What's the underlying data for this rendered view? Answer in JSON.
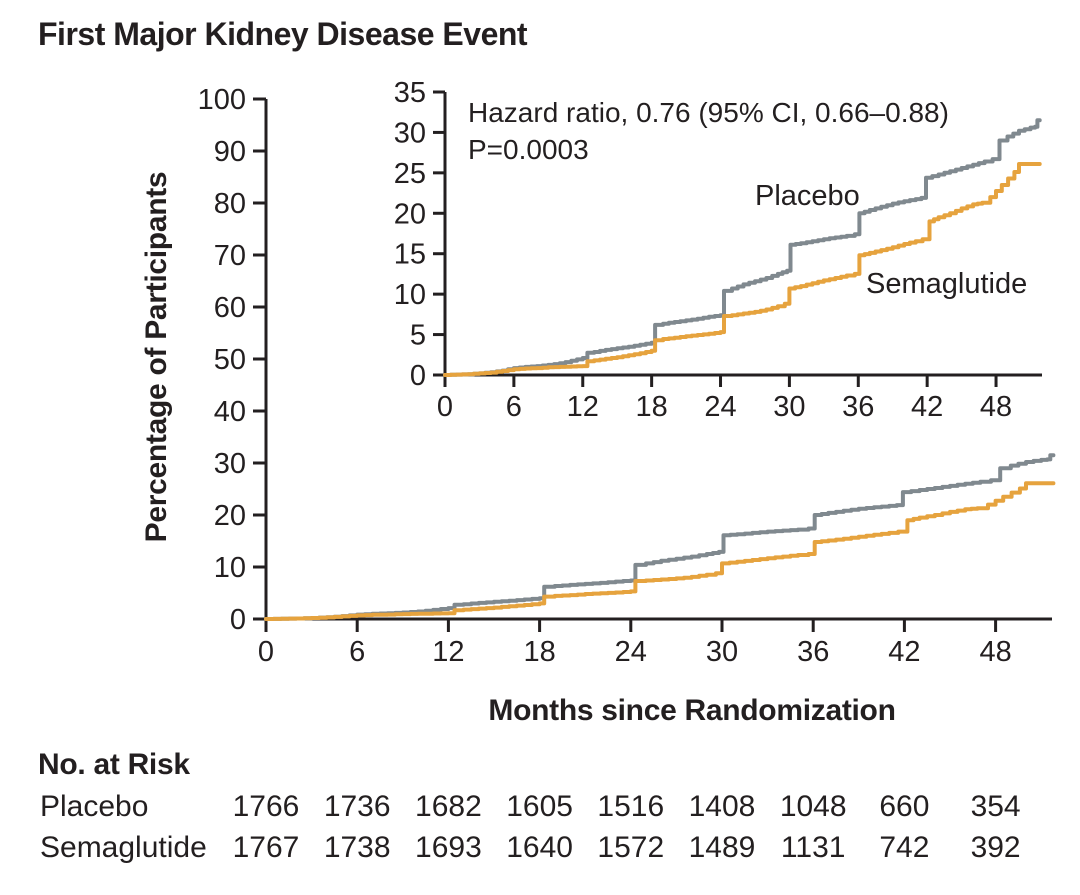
{
  "title": "First Major Kidney Disease Event",
  "colors": {
    "placebo": "#80898F",
    "semaglutide": "#E6A33E",
    "axis": "#231F20",
    "text": "#231F20"
  },
  "annotation": {
    "line1": "Hazard ratio, 0.76 (95% CI, 0.66–0.88)",
    "line2": "P=0.0003"
  },
  "chart_data": {
    "type": "line",
    "title": "First Major Kidney Disease Event",
    "xlabel": "Months since Randomization",
    "ylabel": "Percentage of Participants",
    "main_axis": {
      "xticks": [
        0,
        6,
        12,
        18,
        24,
        30,
        36,
        42,
        48
      ],
      "yticks": [
        0,
        10,
        20,
        30,
        40,
        50,
        60,
        70,
        80,
        90,
        100
      ],
      "xlim": [
        0,
        51.8
      ],
      "ylim": [
        0,
        100
      ],
      "grid": false
    },
    "inset_axis": {
      "xticks": [
        0,
        6,
        12,
        18,
        24,
        30,
        36,
        42,
        48
      ],
      "yticks": [
        0,
        5,
        10,
        15,
        20,
        25,
        30,
        35
      ],
      "xlim": [
        0,
        51.8
      ],
      "ylim": [
        0,
        35
      ],
      "grid": false
    },
    "legend_position": "labels-inside-inset",
    "series": [
      {
        "name": "Placebo",
        "color": "#80898F",
        "points": [
          [
            0,
            0
          ],
          [
            1,
            0.05
          ],
          [
            2,
            0.1
          ],
          [
            3,
            0.2
          ],
          [
            4,
            0.35
          ],
          [
            5,
            0.55
          ],
          [
            6,
            0.85
          ],
          [
            7,
            1.0
          ],
          [
            8,
            1.1
          ],
          [
            9,
            1.25
          ],
          [
            10,
            1.45
          ],
          [
            11,
            1.75
          ],
          [
            12,
            2.1
          ],
          [
            12.4,
            2.75
          ],
          [
            13,
            2.85
          ],
          [
            14,
            3.1
          ],
          [
            15,
            3.3
          ],
          [
            16,
            3.5
          ],
          [
            17,
            3.75
          ],
          [
            18,
            4.0
          ],
          [
            18.3,
            6.2
          ],
          [
            19,
            6.35
          ],
          [
            20,
            6.55
          ],
          [
            21,
            6.75
          ],
          [
            22,
            6.95
          ],
          [
            23,
            7.2
          ],
          [
            24,
            7.4
          ],
          [
            24.3,
            10.4
          ],
          [
            25,
            10.7
          ],
          [
            26,
            11.2
          ],
          [
            27,
            11.6
          ],
          [
            28,
            12.0
          ],
          [
            29,
            12.5
          ],
          [
            29.8,
            12.9
          ],
          [
            30.1,
            16.1
          ],
          [
            31,
            16.3
          ],
          [
            32,
            16.55
          ],
          [
            33,
            16.8
          ],
          [
            34,
            17.0
          ],
          [
            35,
            17.2
          ],
          [
            35.7,
            17.4
          ],
          [
            36.1,
            20.0
          ],
          [
            37,
            20.4
          ],
          [
            38,
            20.8
          ],
          [
            39,
            21.2
          ],
          [
            40,
            21.5
          ],
          [
            41,
            21.75
          ],
          [
            41.5,
            21.9
          ],
          [
            41.9,
            24.4
          ],
          [
            43,
            24.8
          ],
          [
            44,
            25.2
          ],
          [
            45,
            25.6
          ],
          [
            46,
            26.0
          ],
          [
            47,
            26.4
          ],
          [
            47.7,
            26.7
          ],
          [
            48.3,
            29.0
          ],
          [
            49,
            29.5
          ],
          [
            50,
            30.2
          ],
          [
            51,
            30.6
          ],
          [
            51.4,
            30.7
          ],
          [
            51.6,
            31.5
          ],
          [
            51.8,
            31.5
          ]
        ]
      },
      {
        "name": "Semaglutide",
        "color": "#E6A33E",
        "points": [
          [
            0,
            0
          ],
          [
            1,
            0.05
          ],
          [
            2,
            0.1
          ],
          [
            3,
            0.2
          ],
          [
            4,
            0.3
          ],
          [
            5,
            0.5
          ],
          [
            6,
            0.7
          ],
          [
            7,
            0.8
          ],
          [
            8,
            0.85
          ],
          [
            9,
            0.95
          ],
          [
            10,
            1.0
          ],
          [
            11,
            1.05
          ],
          [
            12,
            1.1
          ],
          [
            12.4,
            1.7
          ],
          [
            13,
            1.8
          ],
          [
            14,
            2.0
          ],
          [
            15,
            2.2
          ],
          [
            16,
            2.45
          ],
          [
            17,
            2.7
          ],
          [
            18,
            3.0
          ],
          [
            18.3,
            4.3
          ],
          [
            19,
            4.45
          ],
          [
            20,
            4.6
          ],
          [
            21,
            4.8
          ],
          [
            22,
            4.95
          ],
          [
            23,
            5.1
          ],
          [
            24,
            5.3
          ],
          [
            24.3,
            7.3
          ],
          [
            25,
            7.4
          ],
          [
            26,
            7.6
          ],
          [
            27,
            7.8
          ],
          [
            28,
            8.1
          ],
          [
            29,
            8.5
          ],
          [
            29.6,
            8.8
          ],
          [
            30,
            10.7
          ],
          [
            31,
            11.0
          ],
          [
            32,
            11.35
          ],
          [
            33,
            11.7
          ],
          [
            34,
            12.0
          ],
          [
            35,
            12.3
          ],
          [
            35.7,
            12.5
          ],
          [
            36.1,
            14.8
          ],
          [
            37,
            15.1
          ],
          [
            38,
            15.45
          ],
          [
            39,
            15.8
          ],
          [
            40,
            16.2
          ],
          [
            41,
            16.55
          ],
          [
            41.6,
            16.8
          ],
          [
            42.2,
            19.0
          ],
          [
            43,
            19.5
          ],
          [
            44,
            20.0
          ],
          [
            45,
            20.6
          ],
          [
            46,
            21.1
          ],
          [
            46.8,
            21.3
          ],
          [
            47.5,
            22.0
          ],
          [
            48.5,
            23.5
          ],
          [
            49.6,
            25.1
          ],
          [
            50,
            26.1
          ],
          [
            51.8,
            26.1
          ]
        ]
      }
    ]
  },
  "risk_table": {
    "header": "No. at Risk",
    "months": [
      0,
      6,
      12,
      18,
      24,
      30,
      36,
      42,
      48
    ],
    "rows": [
      {
        "label": "Placebo",
        "values": [
          "1766",
          "1736",
          "1682",
          "1605",
          "1516",
          "1408",
          "1048",
          "660",
          "354"
        ]
      },
      {
        "label": "Semaglutide",
        "values": [
          "1767",
          "1738",
          "1693",
          "1640",
          "1572",
          "1489",
          "1131",
          "742",
          "392"
        ]
      }
    ]
  }
}
